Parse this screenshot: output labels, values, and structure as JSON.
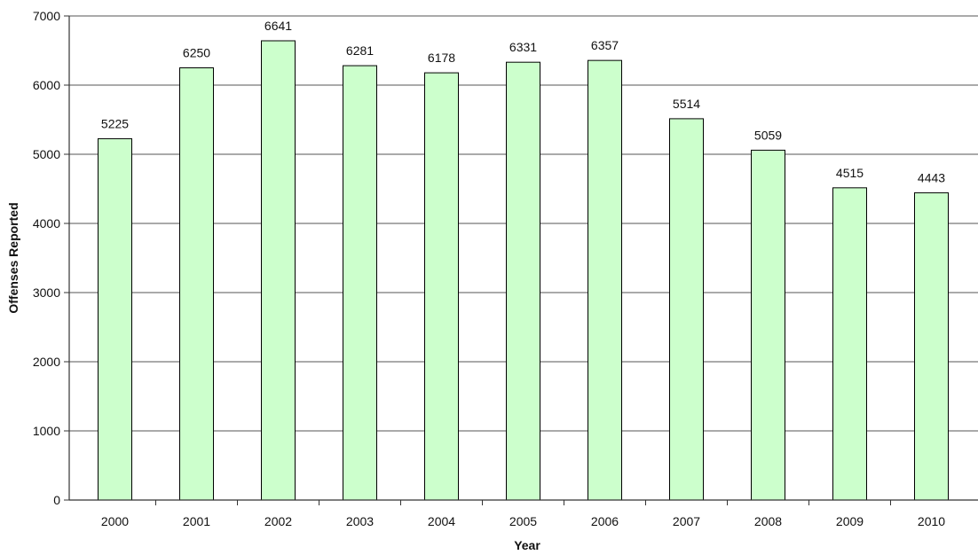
{
  "chart_data": {
    "type": "bar",
    "title": "",
    "xlabel": "Year",
    "ylabel": "Offenses Reported",
    "categories": [
      "2000",
      "2001",
      "2002",
      "2003",
      "2004",
      "2005",
      "2006",
      "2007",
      "2008",
      "2009",
      "2010"
    ],
    "values": [
      5225,
      6250,
      6641,
      6281,
      6178,
      6331,
      6357,
      5514,
      5059,
      4515,
      4443
    ],
    "ylim": [
      0,
      7000
    ],
    "yticks": [
      0,
      1000,
      2000,
      3000,
      4000,
      5000,
      6000,
      7000
    ],
    "grid": true,
    "legend": "none",
    "colors": {
      "bar_fill": "#ccffcc",
      "bar_stroke": "#000000",
      "grid": "#555555"
    }
  }
}
